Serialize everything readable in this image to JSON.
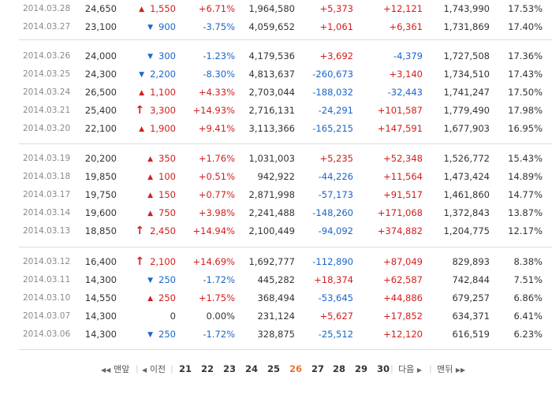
{
  "rows": [
    {
      "date": "2014.03.28",
      "price": "24,650",
      "dir": "up",
      "change": "1,550",
      "pct": "+6.71%",
      "volume": "1,964,580",
      "inst": "+5,373",
      "foreign": "+12,121",
      "holdings": "1,743,990",
      "ratio": "17.53%"
    },
    {
      "date": "2014.03.27",
      "price": "23,100",
      "dir": "down",
      "change": "900",
      "pct": "-3.75%",
      "volume": "4,059,652",
      "inst": "+1,061",
      "foreign": "+6,361",
      "holdings": "1,731,869",
      "ratio": "17.40%"
    },
    {
      "date": "2014.03.26",
      "price": "24,000",
      "dir": "down",
      "change": "300",
      "pct": "-1.23%",
      "volume": "4,179,536",
      "inst": "+3,692",
      "foreign": "-4,379",
      "holdings": "1,727,508",
      "ratio": "17.36%"
    },
    {
      "date": "2014.03.25",
      "price": "24,300",
      "dir": "down",
      "change": "2,200",
      "pct": "-8.30%",
      "volume": "4,813,637",
      "inst": "-260,673",
      "foreign": "+3,140",
      "holdings": "1,734,510",
      "ratio": "17.43%"
    },
    {
      "date": "2014.03.24",
      "price": "26,500",
      "dir": "up",
      "change": "1,100",
      "pct": "+4.33%",
      "volume": "2,703,044",
      "inst": "-188,032",
      "foreign": "-32,443",
      "holdings": "1,741,247",
      "ratio": "17.50%"
    },
    {
      "date": "2014.03.21",
      "price": "25,400",
      "dir": "limit-up",
      "change": "3,300",
      "pct": "+14.93%",
      "volume": "2,716,131",
      "inst": "-24,291",
      "foreign": "+101,587",
      "holdings": "1,779,490",
      "ratio": "17.98%"
    },
    {
      "date": "2014.03.20",
      "price": "22,100",
      "dir": "up",
      "change": "1,900",
      "pct": "+9.41%",
      "volume": "3,113,366",
      "inst": "-165,215",
      "foreign": "+147,591",
      "holdings": "1,677,903",
      "ratio": "16.95%"
    },
    {
      "date": "2014.03.19",
      "price": "20,200",
      "dir": "up",
      "change": "350",
      "pct": "+1.76%",
      "volume": "1,031,003",
      "inst": "+5,235",
      "foreign": "+52,348",
      "holdings": "1,526,772",
      "ratio": "15.43%"
    },
    {
      "date": "2014.03.18",
      "price": "19,850",
      "dir": "up",
      "change": "100",
      "pct": "+0.51%",
      "volume": "942,922",
      "inst": "-44,226",
      "foreign": "+11,564",
      "holdings": "1,473,424",
      "ratio": "14.89%"
    },
    {
      "date": "2014.03.17",
      "price": "19,750",
      "dir": "up",
      "change": "150",
      "pct": "+0.77%",
      "volume": "2,871,998",
      "inst": "-57,173",
      "foreign": "+91,517",
      "holdings": "1,461,860",
      "ratio": "14.77%"
    },
    {
      "date": "2014.03.14",
      "price": "19,600",
      "dir": "up",
      "change": "750",
      "pct": "+3.98%",
      "volume": "2,241,488",
      "inst": "-148,260",
      "foreign": "+171,068",
      "holdings": "1,372,843",
      "ratio": "13.87%"
    },
    {
      "date": "2014.03.13",
      "price": "18,850",
      "dir": "limit-up",
      "change": "2,450",
      "pct": "+14.94%",
      "volume": "2,100,449",
      "inst": "-94,092",
      "foreign": "+374,882",
      "holdings": "1,204,775",
      "ratio": "12.17%"
    },
    {
      "date": "2014.03.12",
      "price": "16,400",
      "dir": "limit-up",
      "change": "2,100",
      "pct": "+14.69%",
      "volume": "1,692,777",
      "inst": "-112,890",
      "foreign": "+87,049",
      "holdings": "829,893",
      "ratio": "8.38%"
    },
    {
      "date": "2014.03.11",
      "price": "14,300",
      "dir": "down",
      "change": "250",
      "pct": "-1.72%",
      "volume": "445,282",
      "inst": "+18,374",
      "foreign": "+62,587",
      "holdings": "742,844",
      "ratio": "7.51%"
    },
    {
      "date": "2014.03.10",
      "price": "14,550",
      "dir": "up",
      "change": "250",
      "pct": "+1.75%",
      "volume": "368,494",
      "inst": "-53,645",
      "foreign": "+44,886",
      "holdings": "679,257",
      "ratio": "6.86%"
    },
    {
      "date": "2014.03.07",
      "price": "14,300",
      "dir": "flat",
      "change": "0",
      "pct": "0.00%",
      "volume": "231,124",
      "inst": "+5,627",
      "foreign": "+17,852",
      "holdings": "634,371",
      "ratio": "6.41%"
    },
    {
      "date": "2014.03.06",
      "price": "14,300",
      "dir": "down",
      "change": "250",
      "pct": "-1.72%",
      "volume": "328,875",
      "inst": "-25,512",
      "foreign": "+12,120",
      "holdings": "616,519",
      "ratio": "6.23%"
    }
  ],
  "pagination": {
    "first_label": "맨앞",
    "prev_label": "이전",
    "next_label": "다음",
    "last_label": "맨뒤",
    "pages": [
      "21",
      "22",
      "23",
      "24",
      "25",
      "26",
      "27",
      "28",
      "29",
      "30"
    ],
    "current": "26"
  },
  "colors": {
    "up": "#d41d1d",
    "down": "#1a66cc",
    "current_page": "#e8742a",
    "separator": "#dcdcdc"
  },
  "icons": {
    "up": "triangle-up-icon",
    "down": "triangle-down-icon",
    "limit-up": "bold-up-arrow-icon"
  }
}
